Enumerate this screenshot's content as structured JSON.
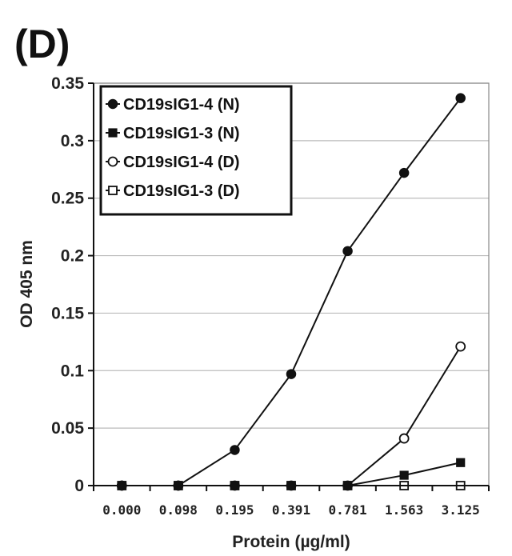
{
  "panel_label": "(D)",
  "chart_data": {
    "type": "line",
    "title": "",
    "xlabel": "Protein (µg/ml)",
    "ylabel": "OD 405 nm",
    "categories": [
      "0.000",
      "0.098",
      "0.195",
      "0.391",
      "0.781",
      "1.563",
      "3.125"
    ],
    "yticks": [
      "0",
      "0.05",
      "0.1",
      "0.15",
      "0.2",
      "0.25",
      "0.3",
      "0.35"
    ],
    "ylim": [
      0,
      0.35
    ],
    "grid": "horizontal",
    "legend_position": "top-left",
    "series": [
      {
        "name": "CD19sIG1-4 (N)",
        "marker": "filled-circle",
        "values": [
          0,
          0,
          0.031,
          0.097,
          0.204,
          0.272,
          0.337
        ]
      },
      {
        "name": "CD19sIG1-3 (N)",
        "marker": "filled-square",
        "values": [
          0,
          0,
          0,
          0,
          0,
          0.009,
          0.02
        ]
      },
      {
        "name": "CD19sIG1-4 (D)",
        "marker": "open-circle",
        "values": [
          0,
          0,
          0,
          0,
          0,
          0.041,
          0.121
        ]
      },
      {
        "name": "CD19sIG1-3 (D)",
        "marker": "open-square",
        "values": [
          0,
          0,
          0,
          0,
          0,
          0,
          0
        ]
      }
    ],
    "colors": {
      "line": "#111111",
      "grid": "#bbbbbb",
      "marker_fill_open": "#ffffff"
    }
  }
}
